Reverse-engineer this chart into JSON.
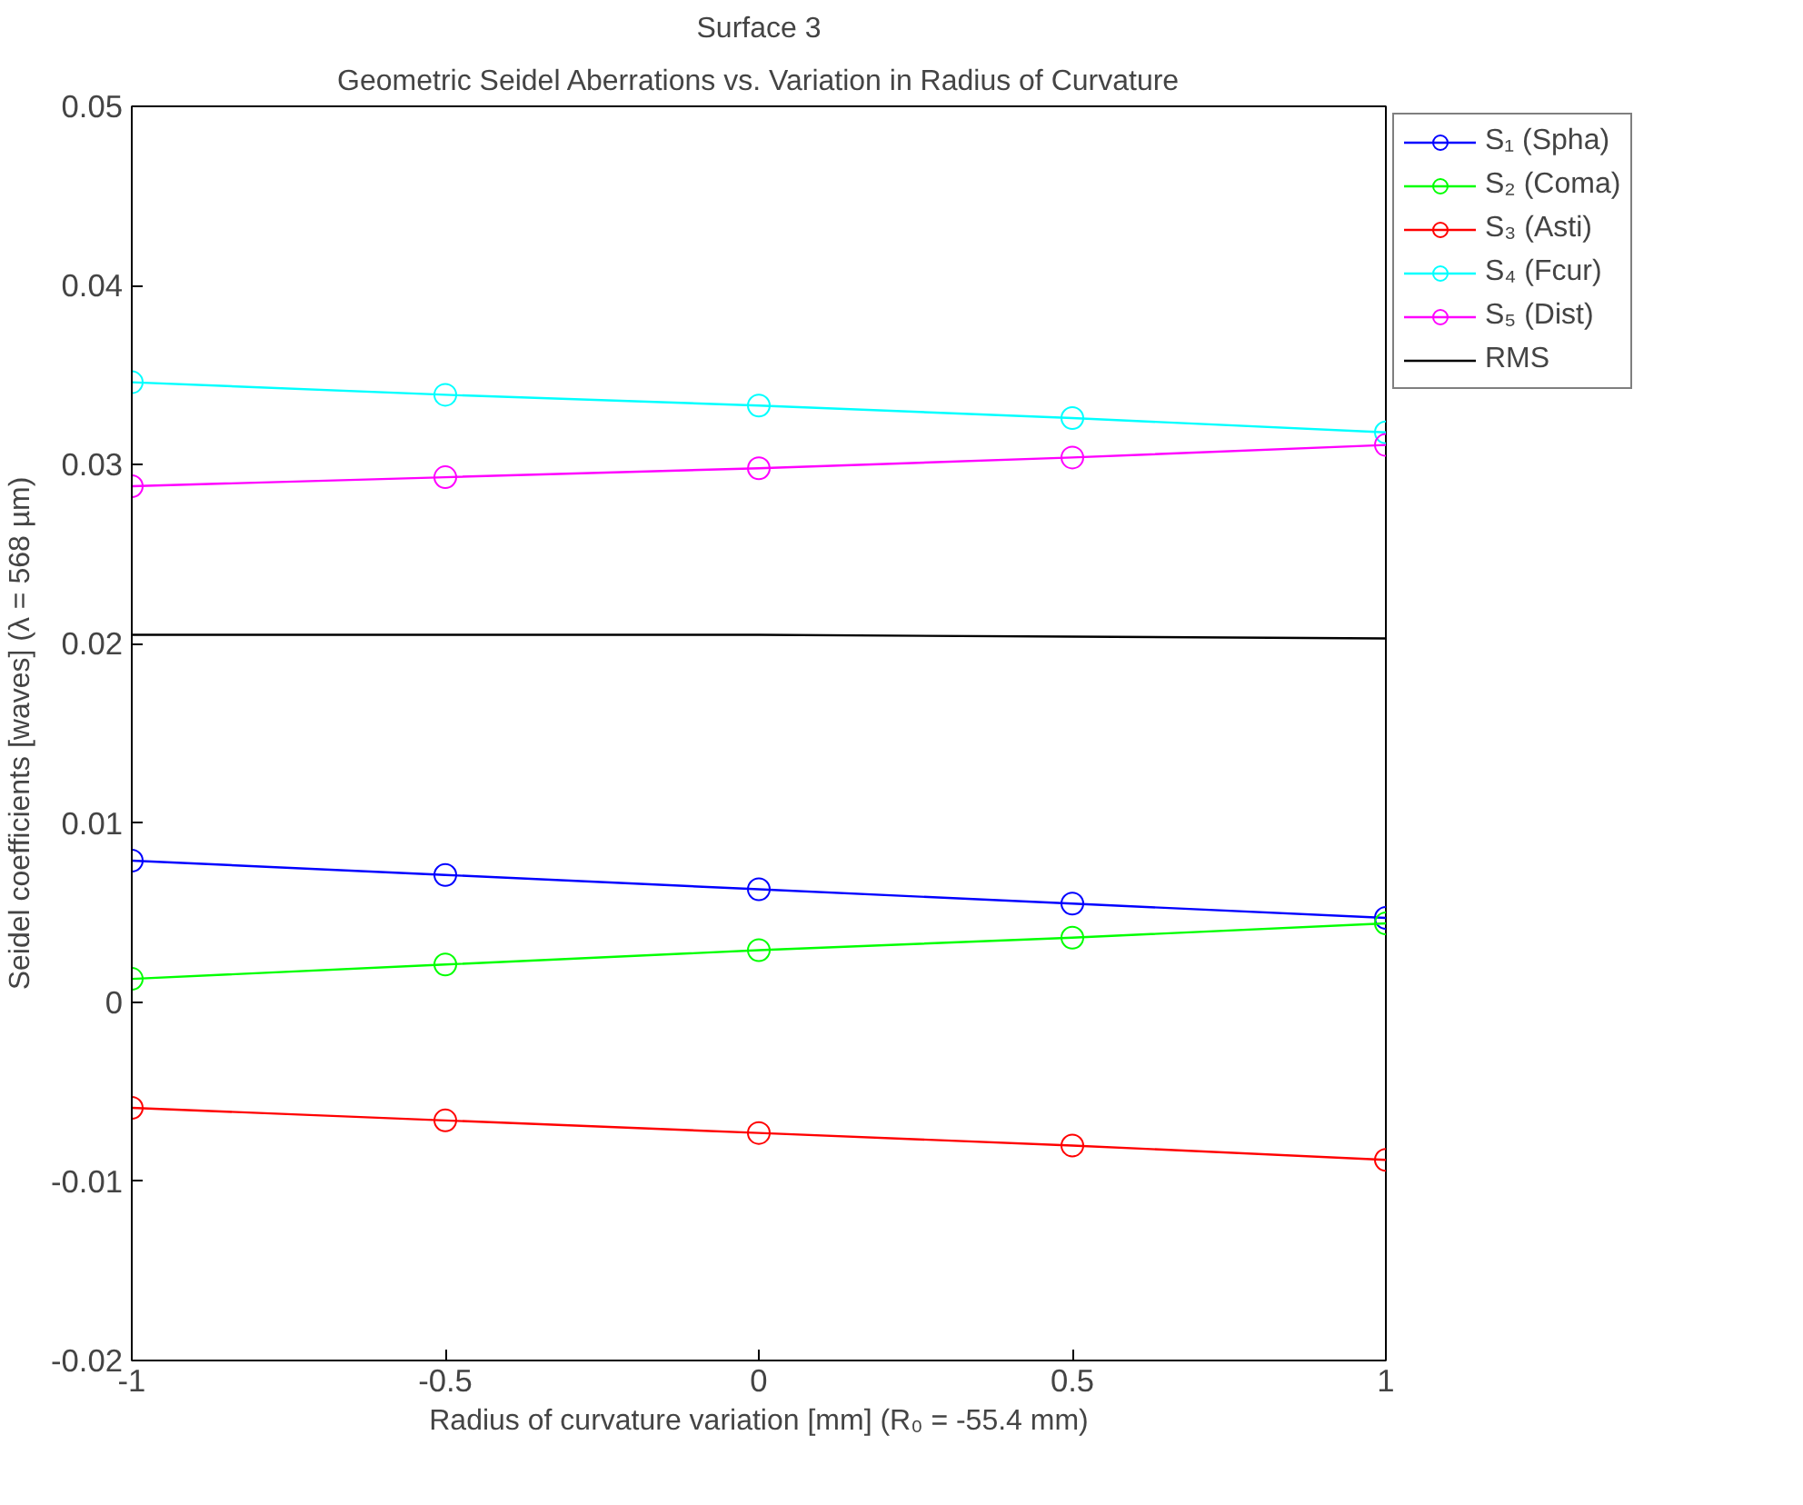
{
  "chart_data": {
    "type": "line",
    "title": "Surface 3",
    "subtitle": "Geometric Seidel Aberrations vs. Variation in Radius of Curvature",
    "xlabel": "Radius of curvature variation [mm] (R₀ = -55.4 mm)",
    "ylabel": "Seidel coefficients [waves] (λ = 568 µm)",
    "x": [
      -1,
      -0.5,
      0,
      0.5,
      1
    ],
    "series": [
      {
        "name": "S₁ (Spha)",
        "color": "#0000ff",
        "values": [
          0.0079,
          0.0071,
          0.0063,
          0.0055,
          0.0047
        ]
      },
      {
        "name": "S₂ (Coma)",
        "color": "#00ff00",
        "values": [
          0.0013,
          0.0021,
          0.0029,
          0.0036,
          0.0044
        ]
      },
      {
        "name": "S₃ (Asti)",
        "color": "#ff0000",
        "values": [
          -0.0059,
          -0.0066,
          -0.0073,
          -0.008,
          -0.0088
        ]
      },
      {
        "name": "S₄ (Fcur)",
        "color": "#00ffff",
        "values": [
          0.0346,
          0.0339,
          0.0333,
          0.0326,
          0.0318
        ]
      },
      {
        "name": "S₅ (Dist)",
        "color": "#ff00ff",
        "values": [
          0.0288,
          0.0293,
          0.0298,
          0.0304,
          0.0311
        ]
      },
      {
        "name": "RMS",
        "color": "#000000",
        "marker": "none",
        "values": [
          0.0205,
          0.0205,
          0.0205,
          0.0204,
          0.0203
        ]
      }
    ],
    "marker": "circle",
    "line_style": "solid",
    "grid": false,
    "legend": "top right",
    "xlim": [
      -1,
      1
    ],
    "ylim": [
      -0.02,
      0.05
    ],
    "xticks": [
      -1,
      -0.5,
      0,
      0.5,
      1
    ],
    "yticks": [
      -0.02,
      -0.01,
      0,
      0.01,
      0.02,
      0.03,
      0.04,
      0.05
    ]
  }
}
